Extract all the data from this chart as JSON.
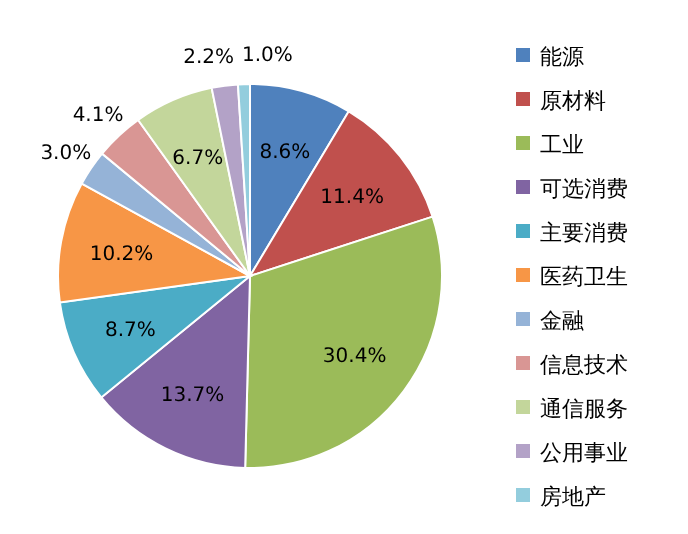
{
  "chart_data": {
    "type": "pie",
    "categories": [
      "能源",
      "原材料",
      "工业",
      "可选消费",
      "主要消费",
      "医药卫生",
      "金融",
      "信息技术",
      "通信服务",
      "公用事业",
      "房地产"
    ],
    "values": [
      8.6,
      11.4,
      30.4,
      13.7,
      8.7,
      10.2,
      3.0,
      4.1,
      6.7,
      2.2,
      1.0
    ],
    "colors": [
      "#4f81bd",
      "#c0504d",
      "#9bbb59",
      "#8064a2",
      "#4bacc6",
      "#f79646",
      "#95b3d7",
      "#d99694",
      "#c3d69b",
      "#b3a2c7",
      "#93cddd"
    ],
    "value_labels": [
      "8.6%",
      "11.4%",
      "30.4%",
      "13.7%",
      "8.7%",
      "10.2%",
      "3.0%",
      "4.1%",
      "6.7%",
      "2.2%",
      "1.0%"
    ],
    "legend": "right"
  }
}
